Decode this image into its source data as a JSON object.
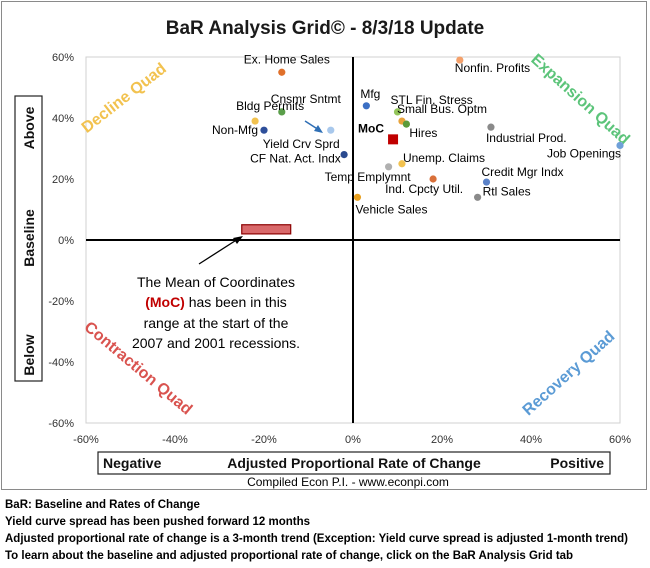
{
  "chart_data": {
    "type": "scatter",
    "title": "BaR Analysis Grid© - 8/3/18 Update",
    "x_ticks": [
      "-60%",
      "-40%",
      "-20%",
      "0%",
      "20%",
      "40%",
      "60%"
    ],
    "y_ticks": [
      "60%",
      "40%",
      "20%",
      "0%",
      "-20%",
      "-40%",
      "-60%"
    ],
    "xlim": [
      -60,
      60
    ],
    "ylim": [
      -60,
      60
    ],
    "x_axis": {
      "negative": "Negative",
      "label": "Adjusted Proportional Rate of Change",
      "positive": "Positive"
    },
    "y_axis": {
      "above": "Above",
      "label": "Baseline",
      "below": "Below"
    },
    "credit": "Compiled Econ P.I. - www.econpi.com",
    "quadrants": {
      "decline": {
        "label": "Decline Quad",
        "color": "#f2c24f"
      },
      "expansion": {
        "label": "Expansion Quad",
        "color": "#5cc47a"
      },
      "contraction": {
        "label": "Contraction Quad",
        "color": "#d9534f"
      },
      "recovery": {
        "label": "Recovery Quad",
        "color": "#5b9bd5"
      }
    },
    "points": [
      {
        "label": "Ex. Home Sales",
        "x": -16,
        "y": 55,
        "color": "#e0702a"
      },
      {
        "label": "Nonfin. Profits",
        "x": 24,
        "y": 59,
        "color": "#f4a06a"
      },
      {
        "label": "Cnsmr Sntmt",
        "x": -16,
        "y": 42,
        "color": "#5a9e4a"
      },
      {
        "label": "Mfg",
        "x": 3,
        "y": 44,
        "color": "#3b6fc4"
      },
      {
        "label": "STL Fin. Stress",
        "x": 10,
        "y": 42,
        "color": "#93c55a"
      },
      {
        "label": "Small Bus. Optm",
        "x": 11,
        "y": 39,
        "color": "#e8a33a"
      },
      {
        "label": "Hires",
        "x": 12,
        "y": 38,
        "color": "#5b9b3a"
      },
      {
        "label": "Bldg Permits",
        "x": -22,
        "y": 39,
        "color": "#f2c24f"
      },
      {
        "label": "Non-Mfg",
        "x": -20,
        "y": 36,
        "color": "#2e4f9a"
      },
      {
        "label": "Yield Crv Sprd",
        "x": -5,
        "y": 36,
        "color": "#a8c8ec"
      },
      {
        "label": "Industrial Prod.",
        "x": 31,
        "y": 37,
        "color": "#8a8a8a"
      },
      {
        "label": "CF Nat. Act. Indx",
        "x": -2,
        "y": 28,
        "color": "#2a4a8f"
      },
      {
        "label": "Job Openings",
        "x": 60,
        "y": 31,
        "color": "#6fa0d8"
      },
      {
        "label": "Unemp. Claims",
        "x": 11,
        "y": 25,
        "color": "#f2c24f"
      },
      {
        "label": "Temp Emplymnt",
        "x": 8,
        "y": 24,
        "color": "#b0b0b0"
      },
      {
        "label": "Ind. Cpcty Util.",
        "x": 18,
        "y": 20,
        "color": "#d9703a"
      },
      {
        "label": "Credit Mgr Indx",
        "x": 30,
        "y": 19,
        "color": "#5b82c8"
      },
      {
        "label": "Rtl Sales",
        "x": 28,
        "y": 14,
        "color": "#8a8a8a"
      },
      {
        "label": "Vehicle Sales",
        "x": 1,
        "y": 14,
        "color": "#e8a020"
      }
    ],
    "moc": {
      "label": "MoC",
      "x": 9,
      "y": 33,
      "color": "#c00000"
    },
    "recession_range": {
      "x": [
        -25,
        -14
      ],
      "y": [
        2,
        5
      ],
      "fill": "#d9696b",
      "stroke": "#8b0000"
    },
    "annotation": {
      "line1": "The Mean of Coordinates",
      "moc_text": "(MoC)",
      "line2_rest": " has been in this",
      "line3": "range at the start of the",
      "line4": "2007 and 2001 recessions."
    }
  },
  "footnotes": [
    "BaR: Baseline and Rates of Change",
    "Yield curve spread has been pushed forward 12 months",
    "Adjusted proportional rate of change is a 3-month trend (Exception: Yield curve spread is adjusted 1-month trend)",
    "To learn about the baseline and adjusted proportional rate of change, click on the BaR Analysis Grid tab"
  ]
}
